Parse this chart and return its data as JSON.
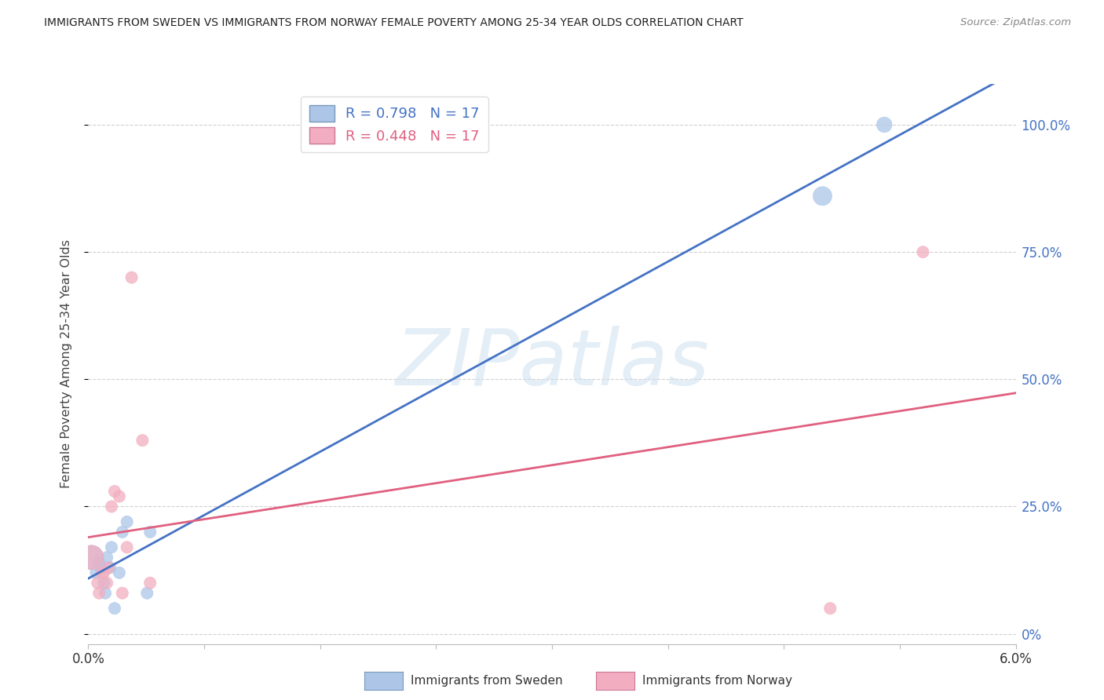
{
  "title": "IMMIGRANTS FROM SWEDEN VS IMMIGRANTS FROM NORWAY FEMALE POVERTY AMONG 25-34 YEAR OLDS CORRELATION CHART",
  "source": "Source: ZipAtlas.com",
  "ylabel": "Female Poverty Among 25-34 Year Olds",
  "ytick_labels": [
    "0%",
    "25.0%",
    "50.0%",
    "75.0%",
    "100.0%"
  ],
  "ytick_values": [
    0.0,
    0.25,
    0.5,
    0.75,
    1.0
  ],
  "xlim": [
    0.0,
    6.0
  ],
  "ylim": [
    -0.02,
    1.08
  ],
  "legend_label1": "Immigrants from Sweden",
  "legend_label2": "Immigrants from Norway",
  "sweden_color": "#adc6e8",
  "norway_color": "#f2aec0",
  "sweden_line_color": "#4472c4",
  "norway_line_color": "#e06080",
  "watermark_text": "ZIPatlas",
  "sweden_x": [
    0.02,
    0.05,
    0.07,
    0.08,
    0.1,
    0.11,
    0.12,
    0.14,
    0.15,
    0.17,
    0.2,
    0.22,
    0.25,
    0.38,
    0.4,
    4.75,
    5.15
  ],
  "sweden_y": [
    0.15,
    0.12,
    0.14,
    0.13,
    0.1,
    0.08,
    0.15,
    0.13,
    0.17,
    0.05,
    0.12,
    0.2,
    0.22,
    0.08,
    0.2,
    0.86,
    1.0
  ],
  "norway_x": [
    0.02,
    0.06,
    0.07,
    0.09,
    0.1,
    0.12,
    0.13,
    0.15,
    0.17,
    0.2,
    0.22,
    0.25,
    0.28,
    0.35,
    0.4,
    4.8,
    5.4
  ],
  "norway_y": [
    0.15,
    0.1,
    0.08,
    0.12,
    0.12,
    0.1,
    0.13,
    0.25,
    0.28,
    0.27,
    0.08,
    0.17,
    0.7,
    0.38,
    0.1,
    0.05,
    0.75
  ],
  "sweden_sizes": [
    500,
    120,
    120,
    120,
    120,
    120,
    120,
    120,
    120,
    120,
    120,
    120,
    120,
    120,
    120,
    300,
    200
  ],
  "norway_sizes": [
    500,
    120,
    120,
    120,
    120,
    120,
    120,
    120,
    120,
    120,
    120,
    120,
    120,
    120,
    120,
    120,
    120
  ],
  "background_color": "#ffffff",
  "grid_color": "#cccccc",
  "title_color": "#222222",
  "axis_label_color": "#444444",
  "right_tick_color": "#4472c4",
  "source_color": "#888888"
}
